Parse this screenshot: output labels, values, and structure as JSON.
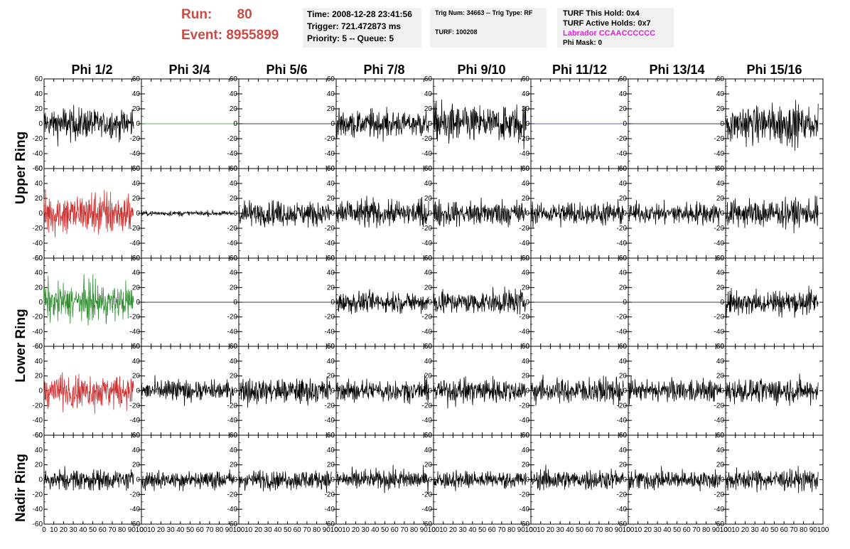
{
  "header": {
    "run_label": "Run:",
    "run_value": "80",
    "event_label": "Event:",
    "event_value": "8955899",
    "time": "Time: 2008-12-28 23:41:56",
    "trigger": "Trigger: 721.472873 ms",
    "priority": "Priority: 5 -- Queue: 5",
    "trig_num": "Trig Num: 34663 -- Trig Type: RF",
    "turf": "TURF: 100208",
    "turf_this_hold": "TURF This Hold: 0x4",
    "turf_active_holds": "TURF Active Holds: 0x7",
    "labrador": "Labrador CCAACCCCCC",
    "phi_mask": "Phi Mask: 0"
  },
  "colors": {
    "title_red": "#cc4a45",
    "labrador_magenta": "#e61ee6",
    "box_bg": "#f0f0f0"
  },
  "columns": [
    "Phi 1/2",
    "Phi 3/4",
    "Phi 5/6",
    "Phi 7/8",
    "Phi 9/10",
    "Phi 11/12",
    "Phi 13/14",
    "Phi 15/16"
  ],
  "row_labels": [
    "Upper Ring",
    "Lower Ring",
    "Nadir Ring"
  ],
  "chart_data": {
    "type": "line",
    "description_of_grid": "5 rows x 8 columns of waveform panels",
    "xlim": [
      0,
      100
    ],
    "ylim": [
      -60,
      60
    ],
    "x_ticks": [
      0,
      10,
      20,
      30,
      40,
      50,
      60,
      70,
      80,
      90,
      100
    ],
    "x_tick_labels": [
      "0",
      "10",
      "20",
      "30",
      "40",
      "50",
      "60",
      "70",
      "80",
      "90",
      "100"
    ],
    "y_ticks": [
      -60,
      -40,
      -20,
      0,
      20,
      40,
      60
    ],
    "y_tick_labels": [
      "-60",
      "-40",
      "-20",
      "0",
      "20",
      "40",
      "60"
    ],
    "panels": [
      [
        {
          "amp": 18,
          "color": "#000000",
          "xmax": 92
        },
        {
          "amp": 0,
          "color": "#2c8c2c",
          "xmax": 100
        },
        {
          "amp": 0,
          "color": "#000000",
          "xmax": 100
        },
        {
          "amp": 15,
          "color": "#000000",
          "xmax": 95
        },
        {
          "amp": 22,
          "color": "#000000",
          "xmax": 95
        },
        {
          "amp": 0,
          "color": "#3030a0",
          "xmax": 100
        },
        {
          "amp": 0,
          "color": "#000000",
          "xmax": 100
        },
        {
          "amp": 22,
          "color": "#000000",
          "xmax": 95
        }
      ],
      [
        {
          "amp": 24,
          "color": "#cc3030",
          "xmax": 92
        },
        {
          "amp": 3,
          "color": "#000000",
          "xmax": 95
        },
        {
          "amp": 14,
          "color": "#000000",
          "xmax": 95
        },
        {
          "amp": 17,
          "color": "#000000",
          "xmax": 95
        },
        {
          "amp": 14,
          "color": "#000000",
          "xmax": 95
        },
        {
          "amp": 13,
          "color": "#000000",
          "xmax": 95
        },
        {
          "amp": 12,
          "color": "#000000",
          "xmax": 95
        },
        {
          "amp": 16,
          "color": "#000000",
          "xmax": 95
        }
      ],
      [
        {
          "amp": 22,
          "color": "#2c8c2c",
          "xmax": 92
        },
        {
          "amp": 0,
          "color": "#000000",
          "xmax": 100
        },
        {
          "amp": 0,
          "color": "#000000",
          "xmax": 100
        },
        {
          "amp": 12,
          "color": "#000000",
          "xmax": 95
        },
        {
          "amp": 14,
          "color": "#000000",
          "xmax": 95
        },
        {
          "amp": 0,
          "color": "#000000",
          "xmax": 100
        },
        {
          "amp": 0,
          "color": "#000000",
          "xmax": 100
        },
        {
          "amp": 15,
          "color": "#000000",
          "xmax": 95
        }
      ],
      [
        {
          "amp": 20,
          "color": "#cc3030",
          "xmax": 92
        },
        {
          "amp": 12,
          "color": "#000000",
          "xmax": 95
        },
        {
          "amp": 15,
          "color": "#000000",
          "xmax": 95
        },
        {
          "amp": 13,
          "color": "#000000",
          "xmax": 95
        },
        {
          "amp": 14,
          "color": "#000000",
          "xmax": 95
        },
        {
          "amp": 15,
          "color": "#000000",
          "xmax": 95
        },
        {
          "amp": 13,
          "color": "#000000",
          "xmax": 95
        },
        {
          "amp": 14,
          "color": "#000000",
          "xmax": 95
        }
      ],
      [
        {
          "amp": 12,
          "color": "#000000",
          "xmax": 92
        },
        {
          "amp": 11,
          "color": "#000000",
          "xmax": 95
        },
        {
          "amp": 11,
          "color": "#000000",
          "xmax": 95
        },
        {
          "amp": 11,
          "color": "#000000",
          "xmax": 95
        },
        {
          "amp": 11,
          "color": "#000000",
          "xmax": 95
        },
        {
          "amp": 12,
          "color": "#000000",
          "xmax": 95
        },
        {
          "amp": 11,
          "color": "#000000",
          "xmax": 95
        },
        {
          "amp": 12,
          "color": "#000000",
          "xmax": 95
        }
      ]
    ]
  }
}
